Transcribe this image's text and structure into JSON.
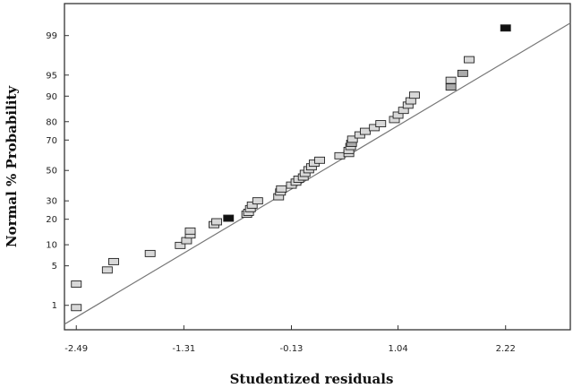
{
  "chart_data": {
    "type": "scatter",
    "title": "",
    "xlabel": "Studentized residuals",
    "ylabel": "Normal % Probability",
    "x_ticks": [
      -2.49,
      -1.31,
      -0.13,
      1.04,
      2.22
    ],
    "x_tick_labels": [
      "-2.49",
      "-1.31",
      "-0.13",
      "1.04",
      "2.22"
    ],
    "xlim": [
      -2.62,
      2.93
    ],
    "y_ticks": [
      1,
      5,
      10,
      20,
      30,
      50,
      70,
      80,
      90,
      95,
      99
    ],
    "y_tick_labels": [
      "1",
      "5",
      "10",
      "20",
      "30",
      "50",
      "70",
      "80",
      "90",
      "95",
      "99"
    ],
    "ylim": [
      0.3,
      99.8
    ],
    "y_scale": "normal-probability",
    "grid": false,
    "reference_line": [
      [
        -2.62,
        0.4
      ],
      [
        2.93,
        99.45
      ]
    ],
    "points": [
      {
        "x": -2.49,
        "y": 0.9,
        "shade": "#d8d8d8"
      },
      {
        "x": -2.49,
        "y": 2.5,
        "shade": "#d8d8d8"
      },
      {
        "x": -2.15,
        "y": 4.3,
        "shade": "#d8d8d8"
      },
      {
        "x": -2.08,
        "y": 5.8,
        "shade": "#d8d8d8"
      },
      {
        "x": -1.68,
        "y": 7.6,
        "shade": "#d8d8d8"
      },
      {
        "x": -1.35,
        "y": 9.8,
        "shade": "#d8d8d8"
      },
      {
        "x": -1.28,
        "y": 11.3,
        "shade": "#d8d8d8"
      },
      {
        "x": -1.24,
        "y": 13.3,
        "shade": "#d8d8d8"
      },
      {
        "x": -1.24,
        "y": 14.8,
        "shade": "#d8d8d8"
      },
      {
        "x": -0.98,
        "y": 17.5,
        "shade": "#d8d8d8"
      },
      {
        "x": -0.95,
        "y": 18.8,
        "shade": "#d8d8d8"
      },
      {
        "x": -0.82,
        "y": 20.5,
        "shade": "#111111"
      },
      {
        "x": -0.62,
        "y": 22.5,
        "shade": "#d8d8d8"
      },
      {
        "x": -0.6,
        "y": 23.5,
        "shade": "#d8d8d8"
      },
      {
        "x": -0.58,
        "y": 25.5,
        "shade": "#d8d8d8"
      },
      {
        "x": -0.56,
        "y": 27.5,
        "shade": "#d8d8d8"
      },
      {
        "x": -0.5,
        "y": 30,
        "shade": "#d8d8d8"
      },
      {
        "x": -0.27,
        "y": 32.5,
        "shade": "#d8d8d8"
      },
      {
        "x": -0.25,
        "y": 35.5,
        "shade": "#d8d8d8"
      },
      {
        "x": -0.24,
        "y": 37.5,
        "shade": "#d8d8d8"
      },
      {
        "x": -0.13,
        "y": 40,
        "shade": "#d8d8d8"
      },
      {
        "x": -0.08,
        "y": 42,
        "shade": "#d8d8d8"
      },
      {
        "x": -0.05,
        "y": 44,
        "shade": "#d8d8d8"
      },
      {
        "x": 0.0,
        "y": 45.5,
        "shade": "#d8d8d8"
      },
      {
        "x": 0.02,
        "y": 48,
        "shade": "#d8d8d8"
      },
      {
        "x": 0.06,
        "y": 50.5,
        "shade": "#d8d8d8"
      },
      {
        "x": 0.09,
        "y": 52.5,
        "shade": "#d8d8d8"
      },
      {
        "x": 0.12,
        "y": 55,
        "shade": "#d8d8d8"
      },
      {
        "x": 0.18,
        "y": 57,
        "shade": "#d8d8d8"
      },
      {
        "x": 0.4,
        "y": 60,
        "shade": "#d8d8d8"
      },
      {
        "x": 0.5,
        "y": 61.5,
        "shade": "#d8d8d8"
      },
      {
        "x": 0.5,
        "y": 63.5,
        "shade": "#d8d8d8"
      },
      {
        "x": 0.52,
        "y": 66,
        "shade": "#d8d8d8"
      },
      {
        "x": 0.53,
        "y": 68,
        "shade": "#aaaaaa"
      },
      {
        "x": 0.54,
        "y": 70.5,
        "shade": "#d8d8d8"
      },
      {
        "x": 0.62,
        "y": 73,
        "shade": "#d8d8d8"
      },
      {
        "x": 0.68,
        "y": 75,
        "shade": "#d8d8d8"
      },
      {
        "x": 0.78,
        "y": 77,
        "shade": "#d8d8d8"
      },
      {
        "x": 0.85,
        "y": 79,
        "shade": "#d8d8d8"
      },
      {
        "x": 1.0,
        "y": 81,
        "shade": "#d8d8d8"
      },
      {
        "x": 1.04,
        "y": 83,
        "shade": "#d8d8d8"
      },
      {
        "x": 1.1,
        "y": 85,
        "shade": "#d8d8d8"
      },
      {
        "x": 1.15,
        "y": 87,
        "shade": "#d8d8d8"
      },
      {
        "x": 1.18,
        "y": 88.5,
        "shade": "#d8d8d8"
      },
      {
        "x": 1.22,
        "y": 90.3,
        "shade": "#d8d8d8"
      },
      {
        "x": 1.62,
        "y": 92.5,
        "shade": "#aaaaaa"
      },
      {
        "x": 1.62,
        "y": 94.0,
        "shade": "#d8d8d8"
      },
      {
        "x": 1.75,
        "y": 95.3,
        "shade": "#aaaaaa"
      },
      {
        "x": 1.82,
        "y": 97.2,
        "shade": "#d8d8d8"
      },
      {
        "x": 2.22,
        "y": 99.3,
        "shade": "#111111"
      }
    ]
  }
}
